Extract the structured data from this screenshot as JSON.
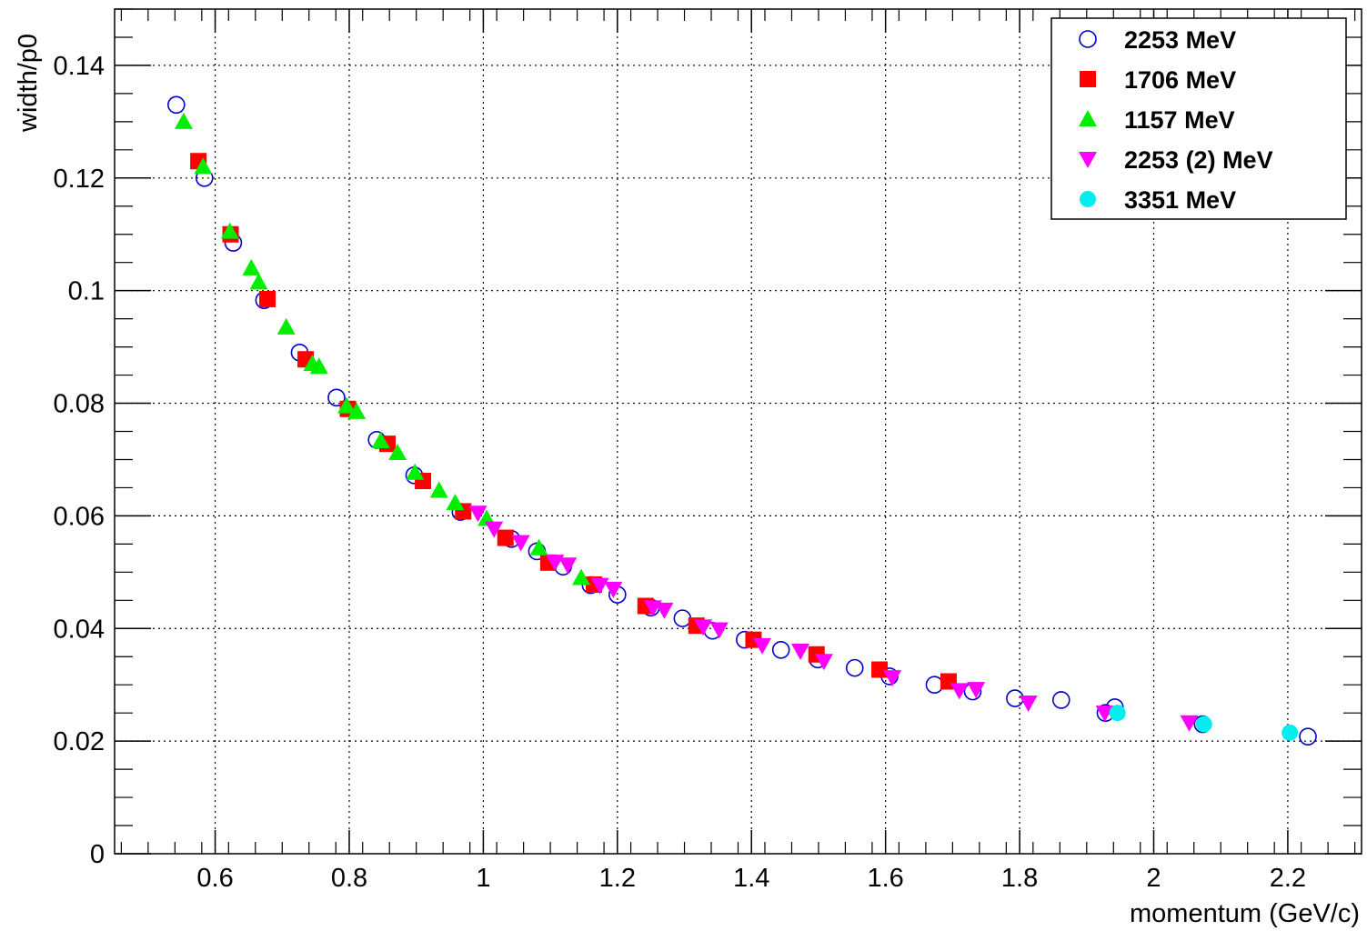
{
  "chart_data": {
    "type": "scatter",
    "xlabel": "momentum (GeV/c)",
    "ylabel": "width/p0",
    "xlim": [
      0.45,
      2.31
    ],
    "ylim": [
      0,
      0.15
    ],
    "x_ticks": [
      "0.6",
      "0.8",
      "1",
      "1.2",
      "1.4",
      "1.6",
      "1.8",
      "2",
      "2.2"
    ],
    "x_tick_values": [
      0.6,
      0.8,
      1.0,
      1.2,
      1.4,
      1.6,
      1.8,
      2.0,
      2.2
    ],
    "y_ticks": [
      "0",
      "0.02",
      "0.04",
      "0.06",
      "0.08",
      "0.1",
      "0.12",
      "0.14"
    ],
    "y_tick_values": [
      0,
      0.02,
      0.04,
      0.06,
      0.08,
      0.1,
      0.12,
      0.14
    ],
    "grid": true,
    "legend_position": "top-right",
    "series": [
      {
        "name": "2253 MeV",
        "marker": "open-circle",
        "color": "#0000cc",
        "x": [
          0.542,
          0.584,
          0.627,
          0.673,
          0.726,
          0.781,
          0.841,
          0.897,
          0.966,
          1.042,
          1.08,
          1.119,
          1.16,
          1.2,
          1.25,
          1.297,
          1.342,
          1.39,
          1.444,
          1.499,
          1.554,
          1.606,
          1.673,
          1.73,
          1.793,
          1.862,
          1.928,
          1.942,
          2.073,
          2.23
        ],
        "y": [
          0.133,
          0.12,
          0.1085,
          0.0983,
          0.089,
          0.081,
          0.0735,
          0.0672,
          0.0607,
          0.0559,
          0.0537,
          0.051,
          0.0477,
          0.046,
          0.0437,
          0.0418,
          0.0396,
          0.038,
          0.0362,
          0.0345,
          0.033,
          0.0315,
          0.03,
          0.0288,
          0.0276,
          0.0273,
          0.025,
          0.026,
          0.023,
          0.0208
        ]
      },
      {
        "name": "1706 MeV",
        "marker": "filled-square",
        "color": "#ff0000",
        "x": [
          0.575,
          0.623,
          0.678,
          0.735,
          0.798,
          0.857,
          0.91,
          0.97,
          1.033,
          1.097,
          1.165,
          1.242,
          1.318,
          1.403,
          1.497,
          1.591,
          1.694
        ],
        "y": [
          0.123,
          0.11,
          0.0985,
          0.0878,
          0.079,
          0.0728,
          0.0662,
          0.0608,
          0.0561,
          0.0517,
          0.0478,
          0.044,
          0.0405,
          0.038,
          0.0354,
          0.0327,
          0.0306
        ]
      },
      {
        "name": "1157 MeV",
        "marker": "filled-triangle-up",
        "color": "#00ee00",
        "x": [
          0.553,
          0.582,
          0.622,
          0.654,
          0.665,
          0.706,
          0.745,
          0.755,
          0.796,
          0.811,
          0.847,
          0.872,
          0.898,
          0.934,
          0.958,
          1.005,
          1.083,
          1.146
        ],
        "y": [
          0.13,
          0.122,
          0.1105,
          0.104,
          0.1015,
          0.0935,
          0.087,
          0.0865,
          0.0795,
          0.0785,
          0.0733,
          0.0712,
          0.0677,
          0.0645,
          0.0623,
          0.0595,
          0.0543,
          0.049
        ]
      },
      {
        "name": "2253 (2) MeV",
        "marker": "filled-triangle-down",
        "color": "#ff00ff",
        "x": [
          0.992,
          1.016,
          1.056,
          1.107,
          1.126,
          1.174,
          1.194,
          1.253,
          1.27,
          1.328,
          1.352,
          1.416,
          1.473,
          1.508,
          1.61,
          1.71,
          1.735,
          1.813,
          1.927,
          2.053
        ],
        "y": [
          0.0605,
          0.0577,
          0.0553,
          0.0518,
          0.0513,
          0.0477,
          0.047,
          0.0437,
          0.0433,
          0.0403,
          0.0398,
          0.037,
          0.036,
          0.0342,
          0.0313,
          0.029,
          0.0292,
          0.0268,
          0.025,
          0.0233
        ]
      },
      {
        "name": "3351 MeV",
        "marker": "filled-circle",
        "color": "#00eeee",
        "x": [
          1.946,
          2.075,
          2.203
        ],
        "y": [
          0.025,
          0.023,
          0.0215
        ]
      }
    ]
  }
}
